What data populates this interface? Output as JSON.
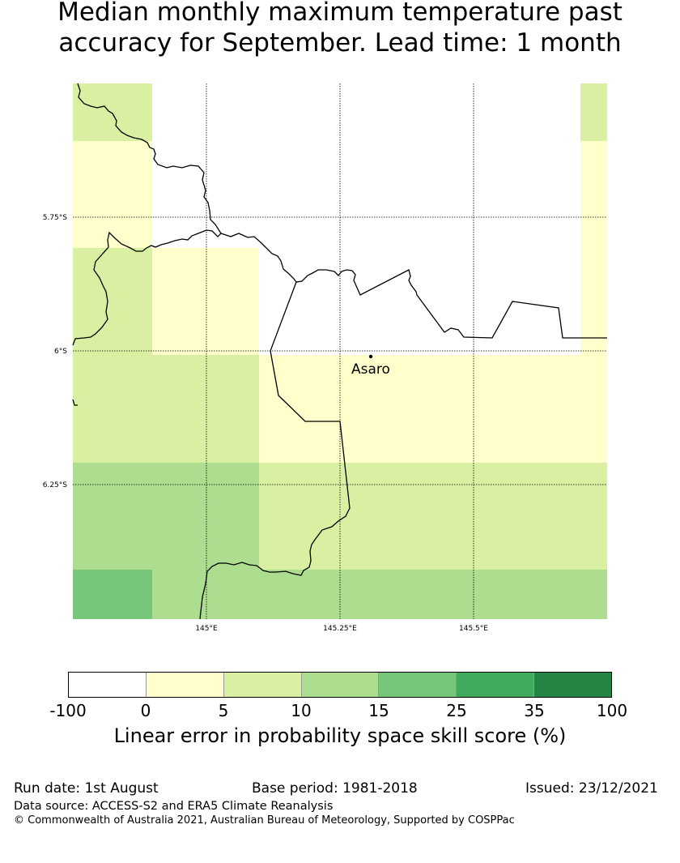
{
  "title": {
    "line1": "Median monthly maximum temperature past",
    "line2": "accuracy for September. Lead time: 1 month"
  },
  "map": {
    "lat_labels": [
      "5.75°S",
      "6°S",
      "6.25°S"
    ],
    "lon_labels": [
      "145°E",
      "145.25°E",
      "145.5°E"
    ],
    "place": {
      "name": "Asaro"
    }
  },
  "legend": {
    "ticks": [
      "-100",
      "0",
      "5",
      "10",
      "15",
      "25",
      "35",
      "100"
    ],
    "colors": [
      "#ffffff",
      "#ffffcc",
      "#d9f0a3",
      "#addd8e",
      "#78c679",
      "#41ab5d",
      "#238443"
    ],
    "label": "Linear error in probability space skill score (%)"
  },
  "footer": {
    "run_date": "Run date: 1st August",
    "base_period": "Base period: 1981-2018",
    "issued": "Issued: 23/12/2021",
    "data_source": "Data source: ACCESS-S2 and ERA5 Climate Reanalysis",
    "copyright": "© Commonwealth of Australia 2021, Australian Bureau of Meteorology, Supported by COSPPac"
  }
}
